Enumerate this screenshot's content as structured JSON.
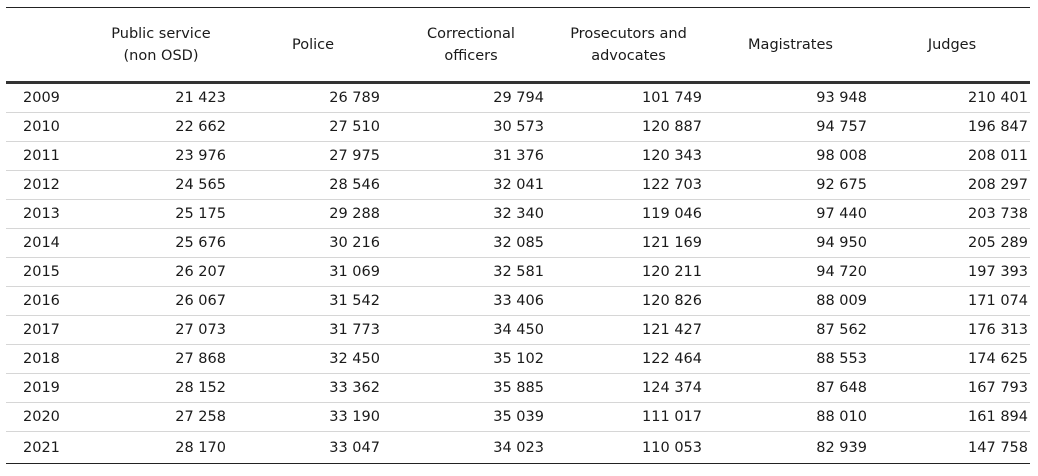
{
  "table": {
    "headers": [
      "",
      "Public service\n(non OSD)",
      "Police",
      "Correctional\nofficers",
      "Prosecutors and\nadvocates",
      "Magistrates",
      "Judges"
    ],
    "header_lines": {
      "year": "",
      "public_service": [
        "Public service",
        "(non OSD)"
      ],
      "police": [
        "Police"
      ],
      "correctional": [
        "Correctional",
        "officers"
      ],
      "prosecutors": [
        "Prosecutors and",
        "advocates"
      ],
      "magistrates": [
        "Magistrates"
      ],
      "judges": [
        "Judges"
      ]
    },
    "rows": [
      {
        "year": "2009",
        "public_service": "21 423",
        "police": "26 789",
        "correctional": "29 794",
        "prosecutors": "101 749",
        "magistrates": "93 948",
        "judges": "210 401"
      },
      {
        "year": "2010",
        "public_service": "22 662",
        "police": "27 510",
        "correctional": "30 573",
        "prosecutors": "120 887",
        "magistrates": "94 757",
        "judges": "196 847"
      },
      {
        "year": "2011",
        "public_service": "23 976",
        "police": "27 975",
        "correctional": "31 376",
        "prosecutors": "120 343",
        "magistrates": "98 008",
        "judges": "208 011"
      },
      {
        "year": "2012",
        "public_service": "24 565",
        "police": "28 546",
        "correctional": "32 041",
        "prosecutors": "122 703",
        "magistrates": "92 675",
        "judges": "208 297"
      },
      {
        "year": "2013",
        "public_service": "25 175",
        "police": "29 288",
        "correctional": "32 340",
        "prosecutors": "119 046",
        "magistrates": "97 440",
        "judges": "203 738"
      },
      {
        "year": "2014",
        "public_service": "25 676",
        "police": "30 216",
        "correctional": "32 085",
        "prosecutors": "121 169",
        "magistrates": "94 950",
        "judges": "205 289"
      },
      {
        "year": "2015",
        "public_service": "26 207",
        "police": "31 069",
        "correctional": "32 581",
        "prosecutors": "120 211",
        "magistrates": "94 720",
        "judges": "197 393"
      },
      {
        "year": "2016",
        "public_service": "26 067",
        "police": "31 542",
        "correctional": "33 406",
        "prosecutors": "120 826",
        "magistrates": "88 009",
        "judges": "171 074"
      },
      {
        "year": "2017",
        "public_service": "27 073",
        "police": "31 773",
        "correctional": "34 450",
        "prosecutors": "121 427",
        "magistrates": "87 562",
        "judges": "176 313"
      },
      {
        "year": "2018",
        "public_service": "27 868",
        "police": "32 450",
        "correctional": "35 102",
        "prosecutors": "122 464",
        "magistrates": "88 553",
        "judges": "174 625"
      },
      {
        "year": "2019",
        "public_service": "28 152",
        "police": "33 362",
        "correctional": "35 885",
        "prosecutors": "124 374",
        "magistrates": "87 648",
        "judges": "167 793"
      },
      {
        "year": "2020",
        "public_service": "27 258",
        "police": "33 190",
        "correctional": "35 039",
        "prosecutors": "111 017",
        "magistrates": "88 010",
        "judges": "161 894"
      },
      {
        "year": "2021",
        "public_service": "28 170",
        "police": "33 047",
        "correctional": "34 023",
        "prosecutors": "110 053",
        "magistrates": "82 939",
        "judges": "147 758"
      }
    ]
  },
  "colors": {
    "text": "#1a1a1a",
    "rule_strong": "#222222",
    "rule_light": "#d6d6d6",
    "background": "#ffffff"
  }
}
